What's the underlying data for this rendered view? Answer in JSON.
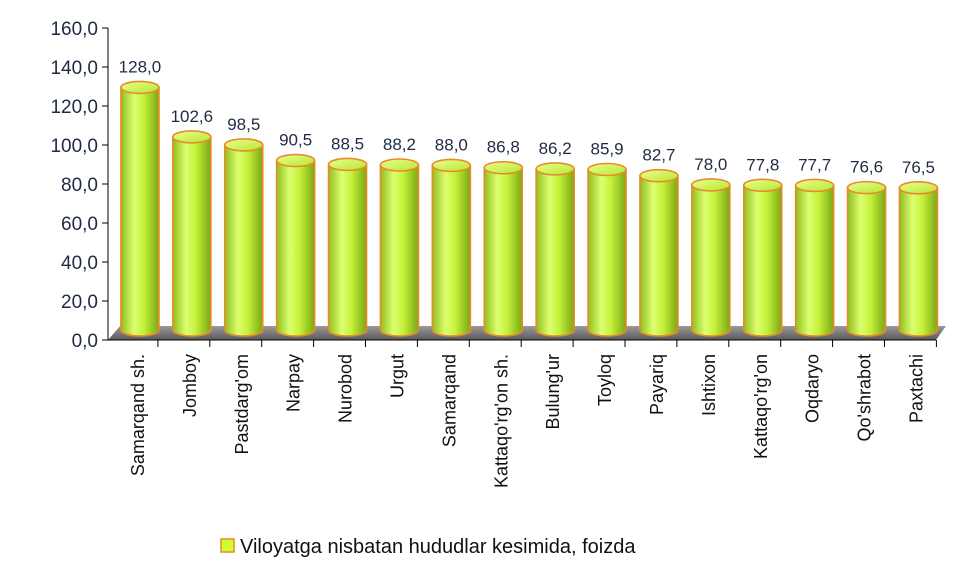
{
  "chart_data": {
    "type": "bar",
    "categories": [
      "Samarqand  sh.",
      "Jomboy",
      "Pastdarg'om",
      "Narpay",
      "Nurobod",
      "Urgut",
      "Samarqand",
      "Kattaqo'rg'on  sh.",
      "Bulung'ur",
      "Toyloq",
      "Payariq",
      "Ishtixon",
      "Kattaqo'rg'on",
      "Oqdaryo",
      "Qo'shrabot",
      "Paxtachi"
    ],
    "values": [
      128.0,
      102.6,
      98.5,
      90.5,
      88.5,
      88.2,
      88.0,
      86.8,
      86.2,
      85.9,
      82.7,
      78.0,
      77.8,
      77.7,
      76.6,
      76.5
    ],
    "data_labels": [
      "128,0",
      "102,6",
      "98,5",
      "90,5",
      "88,5",
      "88,2",
      "88,0",
      "86,8",
      "86,2",
      "85,9",
      "82,7",
      "78,0",
      "77,8",
      "77,7",
      "76,6",
      "76,5"
    ],
    "yticks": [
      0,
      20,
      40,
      60,
      80,
      100,
      120,
      140,
      160
    ],
    "ytick_labels": [
      "0,0",
      "20,0",
      "40,0",
      "60,0",
      "80,0",
      "100,0",
      "120,0",
      "140,0",
      "160,0"
    ],
    "ylim": [
      0,
      160
    ],
    "series": [
      {
        "name": "Viloyatga nisbatan hududlar kesimida, foizda",
        "values": [
          128.0,
          102.6,
          98.5,
          90.5,
          88.5,
          88.2,
          88.0,
          86.8,
          86.2,
          85.9,
          82.7,
          78.0,
          77.8,
          77.7,
          76.6,
          76.5
        ]
      }
    ],
    "legend_position": "bottom",
    "grid": false,
    "bar_style": "cylinder-3d",
    "colors": {
      "bar_fill": "#ccff33",
      "bar_edge": "#e98a2a",
      "floor": "#888888",
      "axis": "#000000"
    }
  }
}
